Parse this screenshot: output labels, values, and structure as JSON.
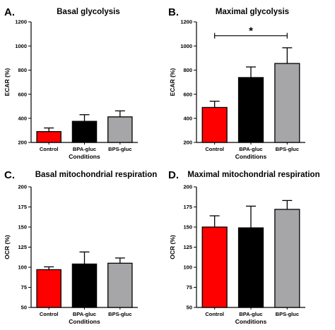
{
  "colors": {
    "control": "#ff0000",
    "bpa": "#000000",
    "bps": "#a6a6a8"
  },
  "chart_data": [
    {
      "panel": "A.",
      "type": "bar",
      "title": "Basal glycolysis",
      "xlabel": "Conditions",
      "ylabel": "ECAR (%)",
      "ylim": [
        200,
        1200
      ],
      "yticks": [
        "200",
        "400",
        "600",
        "800",
        "1000",
        "1200"
      ],
      "categories": [
        "Control",
        "BPA-gluc",
        "BPS-gluc"
      ],
      "values": [
        290,
        375,
        412
      ],
      "errors": [
        30,
        55,
        50
      ]
    },
    {
      "panel": "B.",
      "type": "bar",
      "title": "Maximal glycolysis",
      "xlabel": "Conditions",
      "ylabel": "ECAR (%)",
      "ylim": [
        200,
        1200
      ],
      "yticks": [
        "200",
        "400",
        "600",
        "800",
        "1000",
        "1200"
      ],
      "categories": [
        "Control",
        "BPA-gluc",
        "BPS-gluc"
      ],
      "values": [
        490,
        738,
        855
      ],
      "errors": [
        52,
        88,
        130
      ],
      "significance": {
        "from": 0,
        "to": 2,
        "y": 1085,
        "label": "*"
      }
    },
    {
      "panel": "C.",
      "type": "bar",
      "title": "Basal mitochondrial respiration",
      "xlabel": "Conditions",
      "ylabel": "OCR (%)",
      "ylim": [
        50,
        200
      ],
      "yticks": [
        "50",
        "75",
        "100",
        "125",
        "150",
        "175",
        "200"
      ],
      "categories": [
        "Control",
        "BPA-gluc",
        "BPS-gluc"
      ],
      "values": [
        97,
        104,
        105
      ],
      "errors": [
        3.5,
        15,
        6.5
      ]
    },
    {
      "panel": "D.",
      "type": "bar",
      "title": "Maximal mitochondrial respiration",
      "xlabel": "Conditions",
      "ylabel": "OCR (%)",
      "ylim": [
        50,
        200
      ],
      "yticks": [
        "50",
        "75",
        "100",
        "125",
        "150",
        "175",
        "200"
      ],
      "categories": [
        "Control",
        "BPA-gluc",
        "BPS-gluc"
      ],
      "values": [
        150,
        149,
        172
      ],
      "errors": [
        14,
        27,
        11
      ]
    }
  ]
}
